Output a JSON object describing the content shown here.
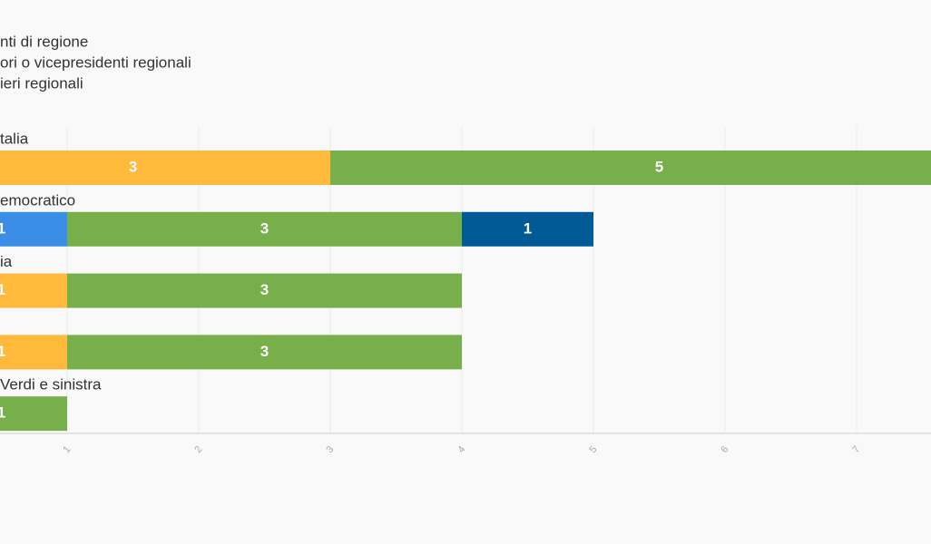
{
  "chart_data": {
    "type": "stacked-bar-horizontal",
    "categories": [
      "talia",
      "emocratico",
      "ia",
      null,
      "Verdi e sinistra"
    ],
    "series": [
      {
        "name": "nti di regione",
        "color": [
          "#ffb93b",
          "#3a8ee6",
          "#ffb93b",
          "#ffb93b",
          null
        ],
        "values": [
          3,
          1,
          1,
          1,
          null
        ]
      },
      {
        "name": "ori o vicepresidenti regionali",
        "color": "#77b04b",
        "values": [
          5,
          3,
          3,
          3,
          1
        ]
      },
      {
        "name": "ieri regionali",
        "color": "#005a96",
        "values": [
          null,
          1,
          null,
          null,
          null
        ]
      }
    ],
    "xlim": [
      0,
      8
    ],
    "xticks": [
      1,
      2,
      3,
      4,
      5,
      6,
      7
    ],
    "grid": true
  }
}
